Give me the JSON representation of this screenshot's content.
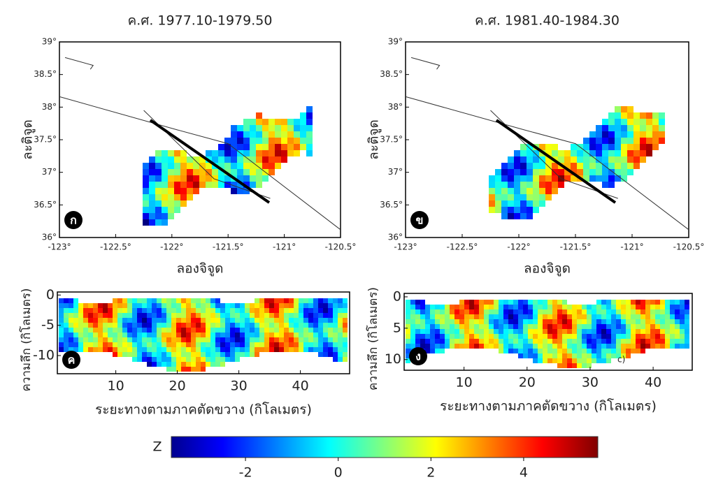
{
  "maps": [
    {
      "title": "ค.ศ. 1977.10-1979.50",
      "label": "ก",
      "xlabel": "ลองจิจูด",
      "ylabel": "ละติจูด",
      "xlim": [
        -123,
        -120.5
      ],
      "ylim": [
        36,
        39
      ],
      "xticks": [
        {
          "value": -123,
          "label": "-123°"
        },
        {
          "value": -122.5,
          "label": "-122.5°"
        },
        {
          "value": -122,
          "label": "-122°"
        },
        {
          "value": -121.5,
          "label": "-121.5°"
        },
        {
          "value": -121,
          "label": "-121°"
        },
        {
          "value": -120.5,
          "label": "-120.5°"
        }
      ],
      "yticks": [
        {
          "value": 36,
          "label": "36°"
        },
        {
          "value": 36.5,
          "label": "36.5°"
        },
        {
          "value": 37,
          "label": "37°"
        },
        {
          "value": 37.5,
          "label": "37.5°"
        },
        {
          "value": 38,
          "label": "38°"
        },
        {
          "value": 38.5,
          "label": "38.5°"
        },
        {
          "value": 39,
          "label": "39°"
        }
      ]
    },
    {
      "title": "ค.ศ. 1981.40-1984.30",
      "label": "ข",
      "xlabel": "ลองจิจูด",
      "ylabel": "ละติจูด",
      "xlim": [
        -123,
        -120.5
      ],
      "ylim": [
        36,
        39
      ],
      "xticks": [
        {
          "value": -123,
          "label": "-123°"
        },
        {
          "value": -122.5,
          "label": "-122.5°"
        },
        {
          "value": -122,
          "label": "-122°"
        },
        {
          "value": -121.5,
          "label": "-121.5°"
        },
        {
          "value": -121,
          "label": "-121°"
        },
        {
          "value": -120.5,
          "label": "-120.5°"
        }
      ],
      "yticks": [
        {
          "value": 36,
          "label": "36°"
        },
        {
          "value": 36.5,
          "label": "36.5°"
        },
        {
          "value": 37,
          "label": "37°"
        },
        {
          "value": 37.5,
          "label": "37.5°"
        },
        {
          "value": 38,
          "label": "38°"
        },
        {
          "value": 38.5,
          "label": "38.5°"
        },
        {
          "value": 39,
          "label": "39°"
        }
      ]
    }
  ],
  "sections": [
    {
      "label": "ค",
      "xlabel": "ระยะทางตามภาคตัดขวาง (กิโลเมตร)",
      "ylabel": "ความลึก (กิโลเมตร)",
      "xlim": [
        0.5,
        48
      ],
      "ylim": [
        -13,
        0.5
      ],
      "xticks": [
        10,
        20,
        30,
        40
      ],
      "yticks": [
        0,
        -5,
        -10
      ]
    },
    {
      "label": "ง",
      "note": "c)",
      "xlabel": "ระยะทางตามภาคตัดขวาง (กิโลเมตร)",
      "ylabel": "ความลึก (กิโลเมตร)",
      "xlim": [
        0.5,
        46.2
      ],
      "ylim": [
        11.7,
        -0.55
      ],
      "xticks": [
        10,
        20,
        30,
        40
      ],
      "yticks": [
        0,
        5,
        10
      ]
    }
  ],
  "colorbar": {
    "title": "Z",
    "lim": [
      -3.6,
      5.6
    ],
    "ticks": [
      -2,
      0,
      2,
      4
    ]
  }
}
